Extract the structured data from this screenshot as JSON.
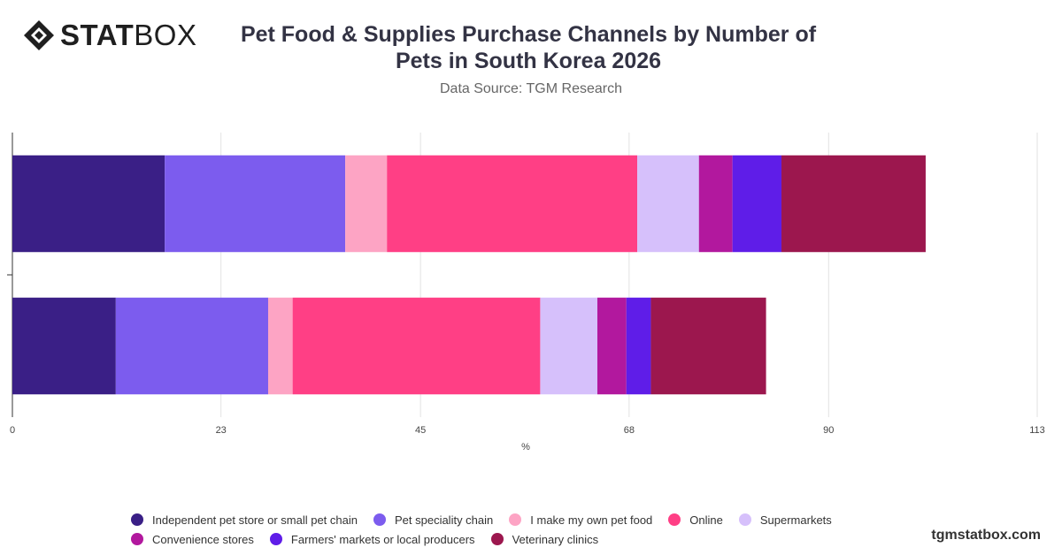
{
  "brand": {
    "logo_bold": "STAT",
    "logo_light": "BOX",
    "footer": "tgmstatbox.com"
  },
  "header": {
    "title_line1": "Pet Food & Supplies Purchase Channels by Number of",
    "title_line2": "Pets in South Korea 2026",
    "subtitle": "Data Source: TGM Research"
  },
  "chart_data": {
    "type": "bar",
    "orientation": "horizontal",
    "stacked": true,
    "title": "Pet Food & Supplies Purchase Channels by Number of Pets in South Korea 2026",
    "subtitle": "Data Source: TGM Research",
    "xlabel": "%",
    "xlim": [
      0,
      113
    ],
    "xticks": [
      0,
      23,
      45,
      68,
      90,
      113
    ],
    "grid": true,
    "legend_position": "bottom",
    "categories": [
      "",
      ""
    ],
    "series": [
      {
        "name": "Independent pet store or small pet chain",
        "color": "#3a1f86",
        "values": [
          16.8,
          11.4
        ]
      },
      {
        "name": "Pet speciality chain",
        "color": "#7c5cee",
        "values": [
          19.9,
          16.8
        ]
      },
      {
        "name": "I make my own pet food",
        "color": "#fda4c4",
        "values": [
          4.6,
          2.7
        ]
      },
      {
        "name": "Online",
        "color": "#ff3f85",
        "values": [
          27.6,
          27.3
        ]
      },
      {
        "name": "Supermarkets",
        "color": "#d6c0fb",
        "values": [
          6.8,
          6.3
        ]
      },
      {
        "name": "Convenience stores",
        "color": "#b2189e",
        "values": [
          3.7,
          3.2
        ]
      },
      {
        "name": "Farmers' markets or local producers",
        "color": "#5f1de8",
        "values": [
          5.4,
          2.7
        ]
      },
      {
        "name": "Veterinary clinics",
        "color": "#9c174e",
        "values": [
          15.9,
          12.7
        ]
      }
    ]
  }
}
